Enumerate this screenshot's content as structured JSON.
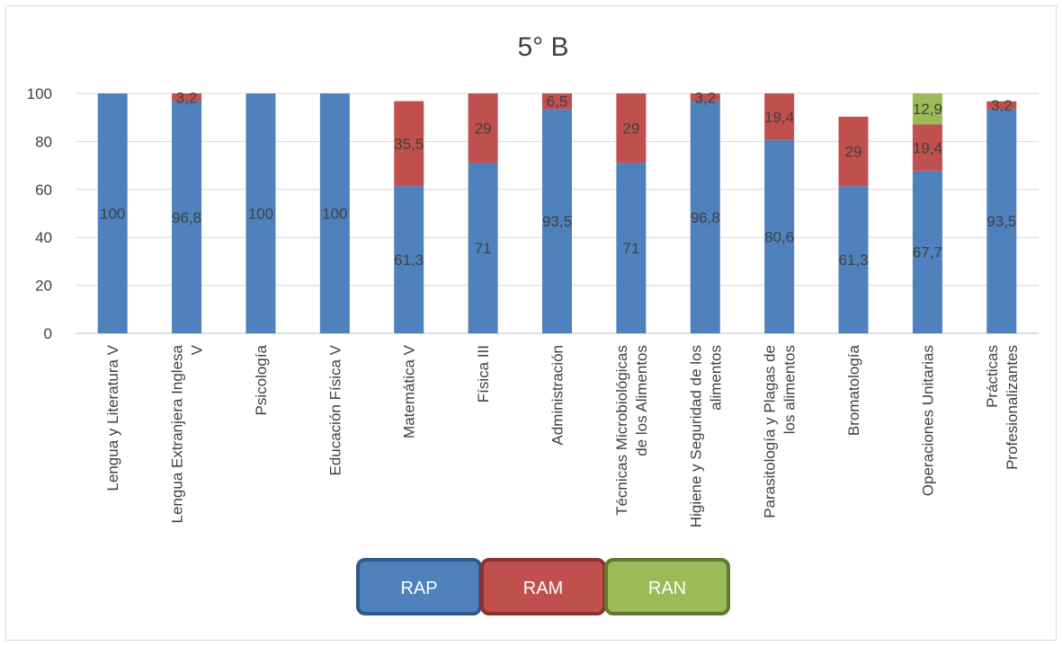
{
  "chart_data": {
    "type": "bar",
    "stacked": true,
    "title": "5° B",
    "categories": [
      [
        "Lengua y Literatura V"
      ],
      [
        "Lengua Extranjera Inglesa",
        "V"
      ],
      [
        "Psicología"
      ],
      [
        "Educación Física V"
      ],
      [
        "Matemática V"
      ],
      [
        "Física III"
      ],
      [
        "Administración"
      ],
      [
        "Técnicas Microbiológicas",
        "de los Alimentos"
      ],
      [
        "Higiene y Seguridad de los",
        "alimentos"
      ],
      [
        "Parasitología y Plagas de",
        "los alimentos"
      ],
      [
        "Bromatología"
      ],
      [
        "Operaciones Unitarias"
      ],
      [
        "Prácticas",
        "Profesionalizantes"
      ]
    ],
    "series": [
      {
        "name": "RAP",
        "color": "#4f81bd",
        "border": "#2e5a8a",
        "values": [
          100,
          96.8,
          100,
          100,
          61.3,
          71,
          93.5,
          71,
          96.8,
          80.6,
          61.3,
          67.7,
          93.5
        ],
        "labels": [
          "100",
          "96,8",
          "100",
          "100",
          "61,3",
          "71",
          "93,5",
          "71",
          "96,8",
          "80,6",
          "61,3",
          "67,7",
          "93,5"
        ]
      },
      {
        "name": "RAM",
        "color": "#c0504d",
        "border": "#8c3330",
        "values": [
          null,
          3.2,
          null,
          null,
          35.5,
          29,
          6.5,
          29,
          3.2,
          19.4,
          29,
          19.4,
          3.2
        ],
        "labels": [
          "",
          "3,2",
          "",
          "",
          "35,5",
          "29",
          "6,5",
          "29",
          "3,2",
          "19,4",
          "29",
          "19,4",
          "3,2"
        ]
      },
      {
        "name": "RAN",
        "color": "#9bbb59",
        "border": "#5e7a2e",
        "values": [
          null,
          null,
          null,
          null,
          null,
          null,
          null,
          null,
          null,
          null,
          null,
          12.9,
          null
        ],
        "labels": [
          "",
          "",
          "",
          "",
          "",
          "",
          "",
          "",
          "",
          "",
          "",
          "12,9",
          ""
        ]
      }
    ],
    "yticks": [
      "0",
      "20",
      "40",
      "60",
      "80",
      "100"
    ],
    "ylim": [
      0,
      100
    ],
    "grid": true,
    "legend": "bottom"
  }
}
